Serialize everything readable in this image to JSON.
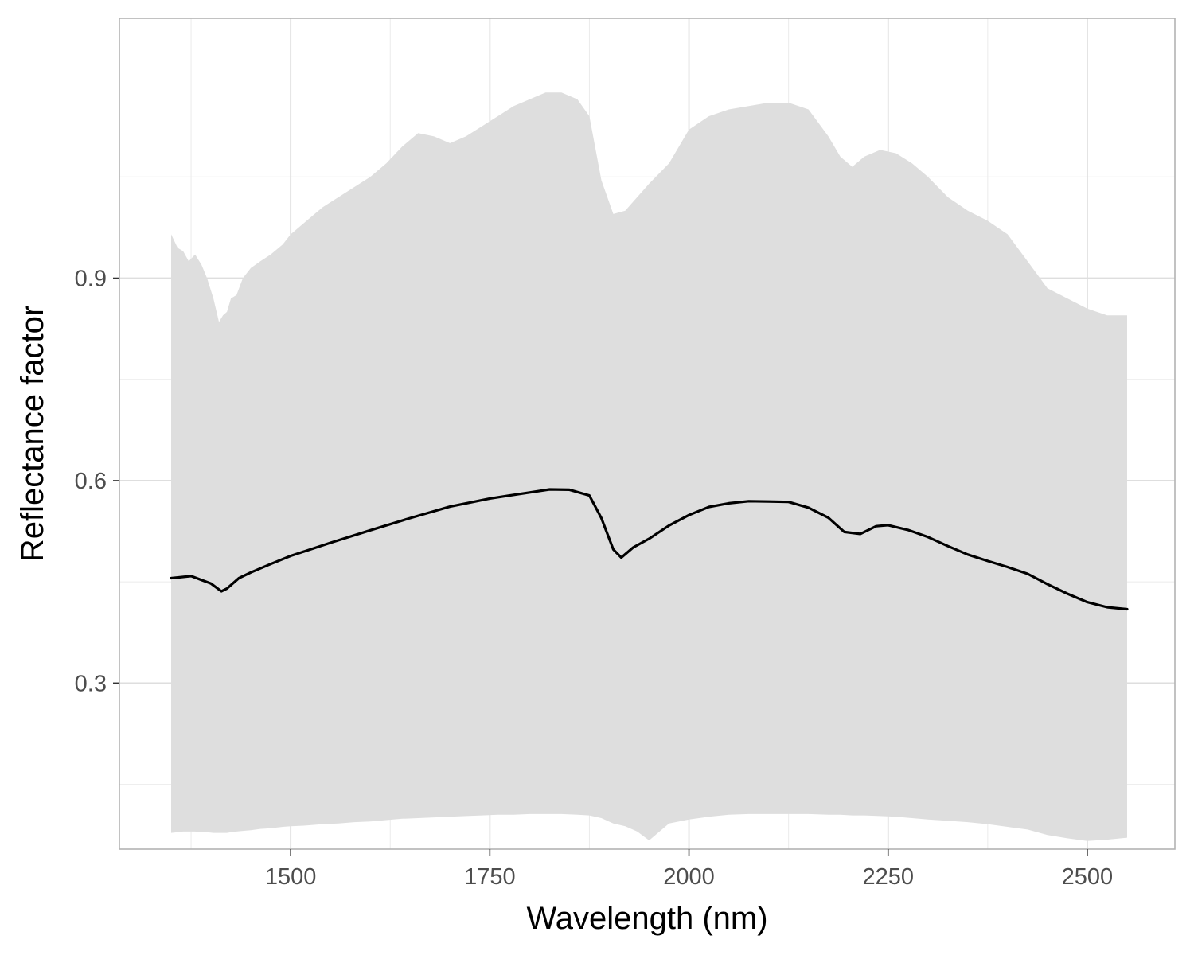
{
  "chart_data": {
    "type": "area",
    "title": "",
    "xlabel": "Wavelength (nm)",
    "ylabel": "Reflectance factor",
    "xlim": [
      1285,
      2610
    ],
    "ylim": [
      0.054,
      1.285
    ],
    "x_ticks": [
      1500,
      1750,
      2000,
      2250,
      2500
    ],
    "x_tick_labels": [
      "1500",
      "1750",
      "2000",
      "2250",
      "2500"
    ],
    "x_minor_ticks": [
      1375,
      1625,
      1875,
      2125,
      2375
    ],
    "y_ticks": [
      0.3,
      0.6,
      0.9
    ],
    "y_tick_labels": [
      "0.3",
      "0.6",
      "0.9"
    ],
    "y_minor_ticks": [
      0.15,
      0.45,
      0.75,
      1.05
    ],
    "grid": true,
    "legend": "none",
    "series": [
      {
        "kind": "line",
        "color": "#000000",
        "x": [
          1350,
          1375,
          1400,
          1413,
          1420,
          1435,
          1450,
          1475,
          1500,
          1550,
          1600,
          1650,
          1700,
          1750,
          1800,
          1825,
          1850,
          1875,
          1890,
          1905,
          1915,
          1930,
          1950,
          1975,
          2000,
          2025,
          2050,
          2075,
          2100,
          2125,
          2150,
          2175,
          2195,
          2215,
          2235,
          2250,
          2275,
          2300,
          2325,
          2350,
          2375,
          2400,
          2425,
          2450,
          2475,
          2500,
          2525,
          2550
        ],
        "y": [
          0.4555,
          0.4585,
          0.4475,
          0.436,
          0.44,
          0.4555,
          0.464,
          0.4765,
          0.4885,
          0.508,
          0.5265,
          0.5445,
          0.5615,
          0.5735,
          0.5825,
          0.587,
          0.5865,
          0.578,
          0.5445,
          0.498,
          0.486,
          0.501,
          0.514,
          0.5335,
          0.549,
          0.561,
          0.5665,
          0.5695,
          0.569,
          0.5685,
          0.56,
          0.545,
          0.524,
          0.521,
          0.5325,
          0.534,
          0.527,
          0.5165,
          0.503,
          0.4905,
          0.481,
          0.472,
          0.462,
          0.4465,
          0.4325,
          0.42,
          0.4125,
          0.4095
        ]
      },
      {
        "kind": "ribbon",
        "color": "#dedede",
        "x": [
          1350,
          1358,
          1365,
          1372,
          1380,
          1388,
          1395,
          1403,
          1410,
          1415,
          1420,
          1425,
          1432,
          1440,
          1450,
          1462,
          1475,
          1490,
          1500,
          1520,
          1540,
          1560,
          1580,
          1600,
          1620,
          1640,
          1660,
          1680,
          1700,
          1720,
          1740,
          1760,
          1780,
          1800,
          1820,
          1840,
          1860,
          1875,
          1890,
          1905,
          1920,
          1935,
          1950,
          1975,
          2000,
          2025,
          2050,
          2075,
          2100,
          2125,
          2150,
          2175,
          2190,
          2205,
          2220,
          2240,
          2260,
          2280,
          2300,
          2325,
          2350,
          2375,
          2400,
          2425,
          2450,
          2475,
          2500,
          2525,
          2550
        ],
        "upper": [
          0.965,
          0.945,
          0.94,
          0.925,
          0.935,
          0.92,
          0.9,
          0.87,
          0.835,
          0.845,
          0.85,
          0.87,
          0.875,
          0.9,
          0.915,
          0.925,
          0.935,
          0.95,
          0.965,
          0.985,
          1.005,
          1.02,
          1.035,
          1.05,
          1.07,
          1.095,
          1.115,
          1.11,
          1.1,
          1.11,
          1.125,
          1.14,
          1.155,
          1.165,
          1.175,
          1.175,
          1.165,
          1.14,
          1.045,
          0.995,
          1.0,
          1.02,
          1.04,
          1.07,
          1.12,
          1.14,
          1.15,
          1.155,
          1.16,
          1.16,
          1.15,
          1.11,
          1.08,
          1.065,
          1.08,
          1.09,
          1.085,
          1.07,
          1.05,
          1.02,
          1.0,
          0.985,
          0.965,
          0.925,
          0.885,
          0.87,
          0.855,
          0.845,
          0.845
        ],
        "lower": [
          0.078,
          0.079,
          0.08,
          0.08,
          0.08,
          0.079,
          0.079,
          0.078,
          0.078,
          0.078,
          0.078,
          0.079,
          0.08,
          0.081,
          0.082,
          0.084,
          0.085,
          0.087,
          0.088,
          0.089,
          0.091,
          0.092,
          0.094,
          0.095,
          0.097,
          0.099,
          0.1,
          0.101,
          0.102,
          0.103,
          0.104,
          0.105,
          0.105,
          0.106,
          0.106,
          0.106,
          0.105,
          0.104,
          0.1,
          0.092,
          0.088,
          0.08,
          0.067,
          0.092,
          0.098,
          0.102,
          0.105,
          0.106,
          0.106,
          0.106,
          0.106,
          0.105,
          0.105,
          0.104,
          0.104,
          0.103,
          0.102,
          0.1,
          0.098,
          0.096,
          0.094,
          0.091,
          0.087,
          0.083,
          0.075,
          0.07,
          0.066,
          0.068,
          0.071
        ]
      }
    ]
  }
}
